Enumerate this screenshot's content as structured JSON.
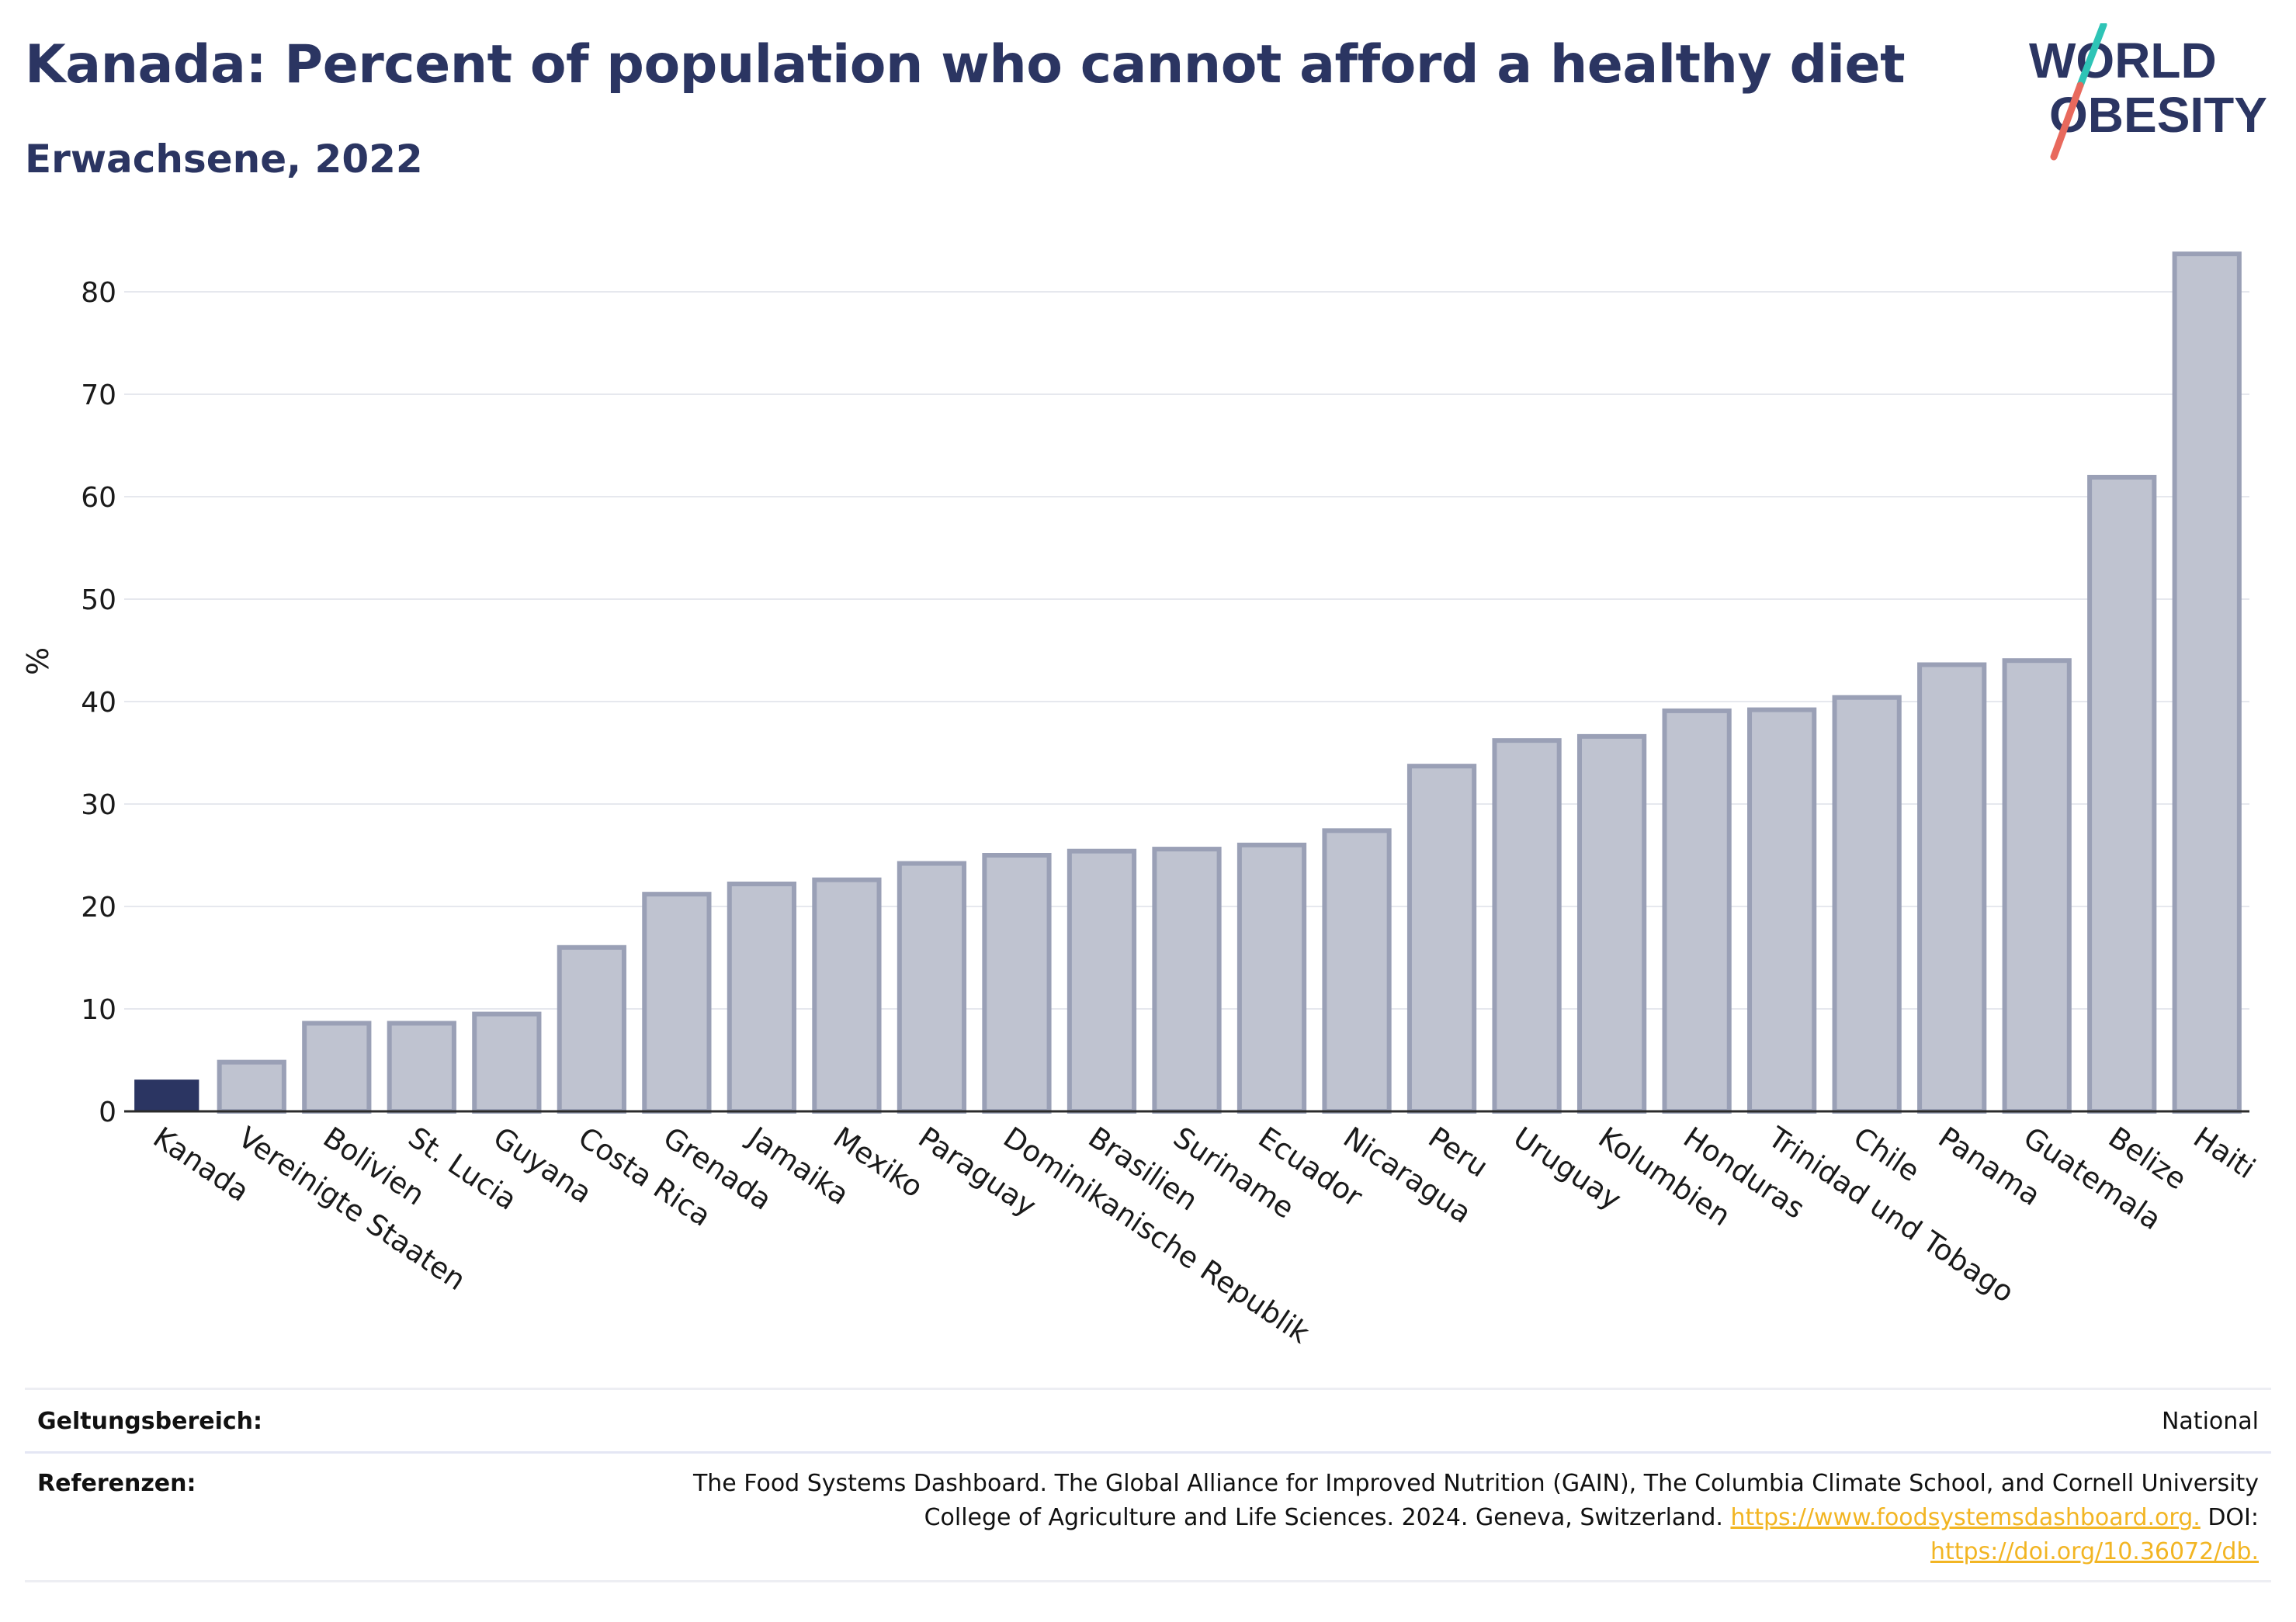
{
  "header": {
    "title": "Kanada: Percent of population who cannot afford a healthy diet",
    "subtitle": "Erwachsene, 2022"
  },
  "logo": {
    "line1": "WORLD",
    "line2": "OBESITY",
    "colors": {
      "text": "#2b3562",
      "slash_top": "#2ec4b6",
      "slash_bottom": "#e8695d"
    }
  },
  "chart_data": {
    "type": "bar",
    "title": "",
    "xlabel": "",
    "ylabel": "%",
    "ylim": [
      0,
      85
    ],
    "yticks": [
      0,
      10,
      20,
      30,
      40,
      50,
      60,
      70,
      80
    ],
    "grid": true,
    "highlight_category": "Kanada",
    "colors": {
      "highlight": "#2b3562",
      "bar_fill": "#bfc3d0",
      "bar_stroke": "#9aa0b6",
      "grid": "#e6e8ee"
    },
    "categories": [
      "Kanada",
      "Vereinigte Staaten",
      "Bolivien",
      "St. Lucia",
      "Guyana",
      "Costa Rica",
      "Grenada",
      "Jamaika",
      "Mexiko",
      "Paraguay",
      "Dominikanische Republik",
      "Brasilien",
      "Suriname",
      "Ecuador",
      "Nicaragua",
      "Peru",
      "Uruguay",
      "Kolumbien",
      "Honduras",
      "Trinidad und Tobago",
      "Chile",
      "Panama",
      "Guatemala",
      "Belize",
      "Haiti"
    ],
    "values": [
      3.1,
      4.8,
      8.6,
      8.6,
      9.5,
      16.0,
      21.2,
      22.2,
      22.6,
      24.2,
      25.0,
      25.4,
      25.6,
      26.0,
      27.4,
      33.7,
      36.2,
      36.6,
      39.1,
      39.2,
      40.4,
      43.6,
      44.0,
      61.9,
      83.7
    ]
  },
  "footer": {
    "scope_label": "Geltungsbereich:",
    "scope_value": "National",
    "refs_label": "Referenzen:",
    "refs_line1": "The Food Systems Dashboard. The Global Alliance for Improved Nutrition (GAIN), The Columbia Climate School, and Cornell University",
    "refs_line2_text": "College of Agriculture and Life Sciences. 2024. Geneva, Switzerland.",
    "refs_line2_link": "https://www.foodsystemsdashboard.org.",
    "refs_line2_doi": "DOI:",
    "refs_line3_link": "https://doi.org/10.36072/db."
  }
}
